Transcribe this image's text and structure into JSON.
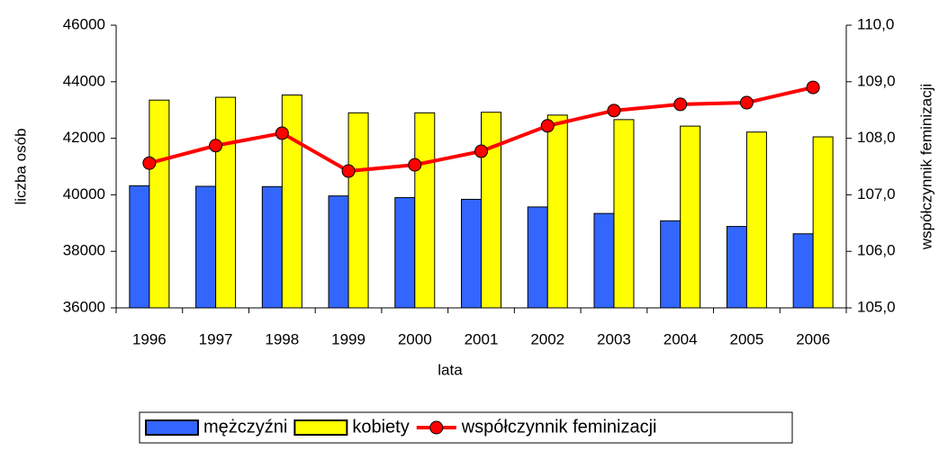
{
  "chart_data": {
    "type": "bar",
    "categories": [
      "1996",
      "1997",
      "1998",
      "1999",
      "2000",
      "2001",
      "2002",
      "2003",
      "2004",
      "2005",
      "2006"
    ],
    "series": [
      {
        "name": "mężczyźni",
        "color": "#3366ff",
        "values": [
          40320,
          40300,
          40290,
          39960,
          39900,
          39840,
          39570,
          39340,
          39080,
          38880,
          38620
        ]
      },
      {
        "name": "kobiety",
        "color": "#ffff00",
        "values": [
          43350,
          43450,
          43530,
          42900,
          42900,
          42920,
          42820,
          42660,
          42430,
          42220,
          42050
        ]
      },
      {
        "name": "współczynnik feminizacji",
        "color": "#ff0000",
        "type": "line",
        "axis": "y2",
        "values": [
          107.56,
          107.87,
          108.09,
          107.42,
          107.53,
          107.77,
          108.22,
          108.49,
          108.6,
          108.63,
          108.9
        ]
      }
    ],
    "xlabel": "lata",
    "ylabel": "liczba osób",
    "y2label": "współczynnik feminizacji",
    "ylim": [
      36000,
      46000
    ],
    "yticks": [
      36000,
      38000,
      40000,
      42000,
      44000,
      46000
    ],
    "y2lim": [
      105,
      110
    ],
    "y2ticks": [
      {
        "value": 105,
        "label": "105,0"
      },
      {
        "value": 106,
        "label": "106,0"
      },
      {
        "value": 107,
        "label": "107,0"
      },
      {
        "value": 108,
        "label": "108,0"
      },
      {
        "value": 109,
        "label": "109,0"
      },
      {
        "value": 110,
        "label": "110,0"
      }
    ],
    "legend": "bottom"
  }
}
